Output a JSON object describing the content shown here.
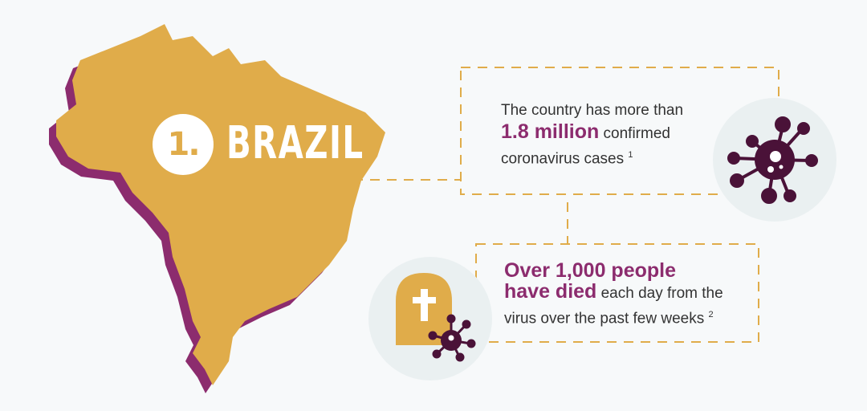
{
  "rank": "1.",
  "country": "BRAZIL",
  "colors": {
    "map": "#e0ac4a",
    "shadow": "#8c2c6e",
    "highlight": "#8c2c6e",
    "icon": "#4a1238",
    "circle": "#eaf0f1"
  },
  "stat1": {
    "pre": "The country has more than",
    "highlight": "1.8 million",
    "post1": "confirmed",
    "post2": "coronavirus cases",
    "footnote": "1",
    "icon": "virus-icon"
  },
  "stat2": {
    "highlight1": "Over 1,000 people",
    "highlight2": "have died",
    "post1": "each day from the",
    "post2": "virus over the past few weeks",
    "footnote": "2",
    "icon": "gravestone-virus-icon"
  }
}
